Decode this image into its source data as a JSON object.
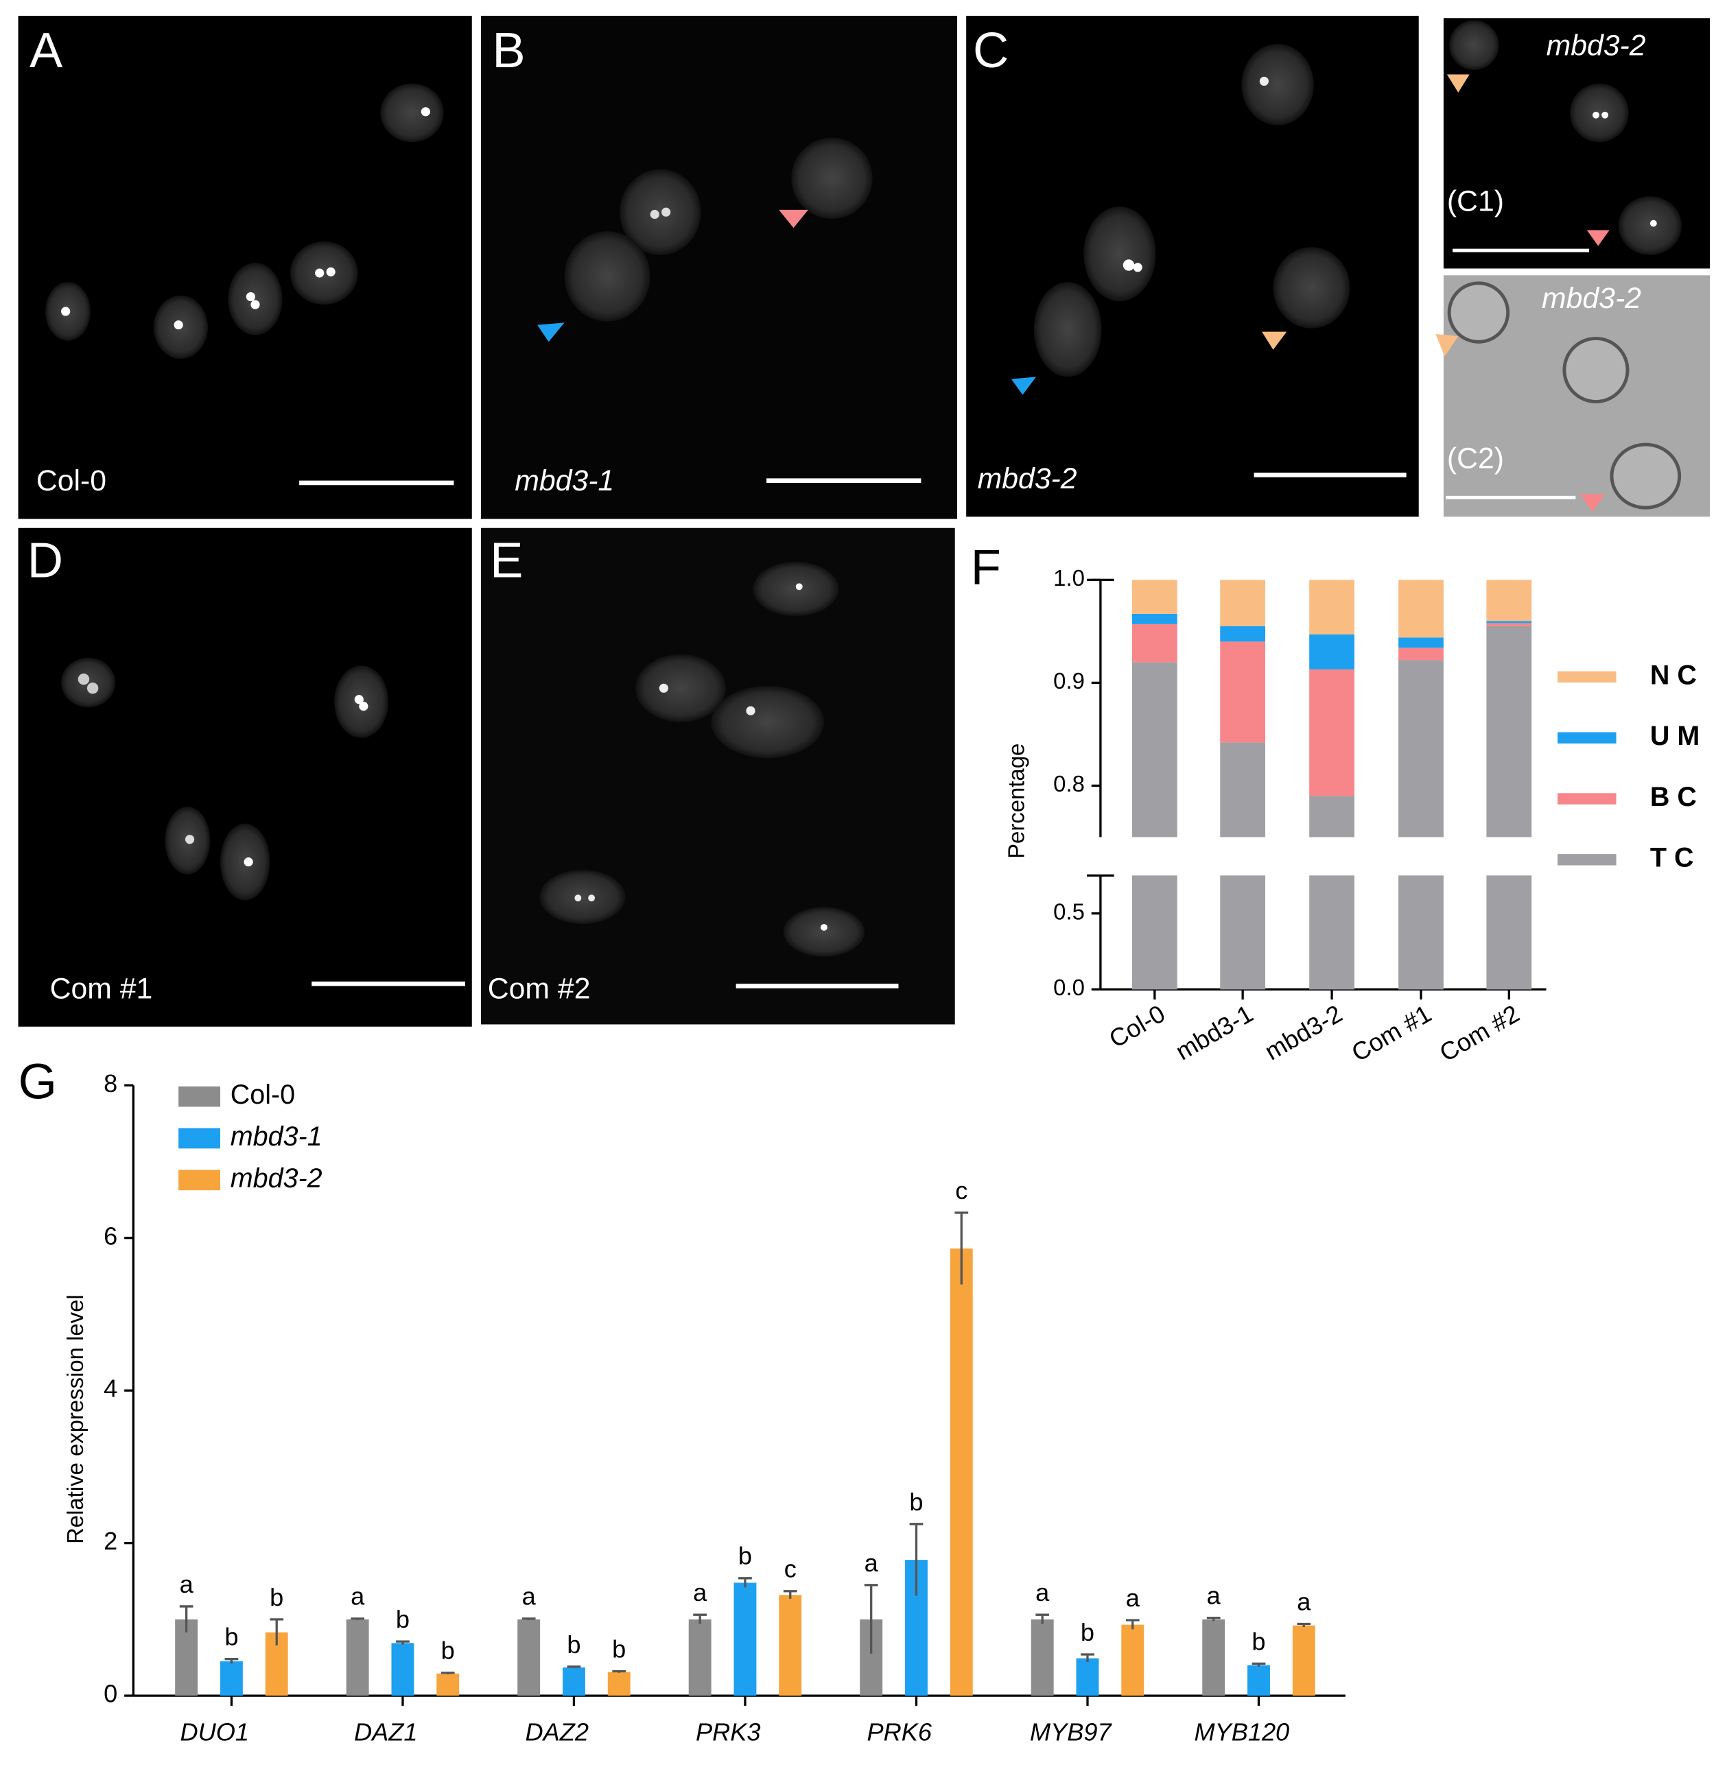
{
  "panels": [
    {
      "label": "A",
      "caption": "Col-0"
    },
    {
      "label": "B",
      "caption": "mbd3-1"
    },
    {
      "label": "C",
      "caption": "mbd3-2"
    },
    {
      "label": "(C1)",
      "caption": "mbd3-2"
    },
    {
      "label": "(C2)",
      "caption": "mbd3-2"
    },
    {
      "label": "D",
      "caption": "Com #1"
    },
    {
      "label": "E",
      "caption": "Com #2"
    }
  ],
  "chart_data": [
    {
      "type": "bar",
      "stacked": true,
      "label": "F",
      "ylabel": "Percentage",
      "categories": [
        "Col-0",
        "mbd3-1",
        "mbd3-2",
        "Com #1",
        "Com #2"
      ],
      "series": [
        {
          "name": "T C",
          "color": "#a0a0a4",
          "values": [
            0.92,
            0.842,
            0.79,
            0.922,
            0.955
          ]
        },
        {
          "name": "B C",
          "color": "#f7868a",
          "values": [
            0.037,
            0.098,
            0.123,
            0.012,
            0.003
          ]
        },
        {
          "name": "U M",
          "color": "#1ea0f0",
          "values": [
            0.01,
            0.015,
            0.034,
            0.01,
            0.002
          ]
        },
        {
          "name": "N C",
          "color": "#f9bd84",
          "values": [
            0.033,
            0.045,
            0.053,
            0.056,
            0.04
          ]
        }
      ],
      "axis_segments": [
        {
          "ylim": [
            0,
            0.75
          ],
          "yticks": [
            {
              "value": 0,
              "label": "0.0"
            },
            0.5
          ]
        },
        {
          "ylim": [
            0.75,
            1
          ],
          "yticks": [
            0.8,
            0.9,
            {
              "value": 1,
              "label": "1.0"
            }
          ]
        }
      ]
    },
    {
      "type": "bar",
      "stacked": false,
      "label": "G",
      "ylabel": "Relative expression level",
      "categories": [
        "DUO1",
        "DAZ1",
        "DAZ2",
        "PRK3",
        "PRK6",
        "MYB97",
        "MYB120"
      ],
      "ylim": [
        0,
        8
      ],
      "yticks": [
        0,
        2,
        4,
        6,
        8
      ],
      "series": [
        {
          "name": "Col-0",
          "color": "#8c8c8c",
          "values": [
            1.0,
            1.0,
            1.0,
            1.0,
            1.0,
            1.0,
            1.0
          ],
          "errors": [
            0.17,
            0.01,
            0.01,
            0.06,
            0.45,
            0.06,
            0.02
          ],
          "labels": [
            "a",
            "a",
            "a",
            "a",
            "a",
            "a",
            "a"
          ]
        },
        {
          "name": "mbd3-1",
          "color": "#1ea0f0",
          "values": [
            0.45,
            0.69,
            0.37,
            1.48,
            1.78,
            0.49,
            0.4
          ],
          "errors": [
            0.03,
            0.02,
            0.01,
            0.06,
            0.47,
            0.05,
            0.02
          ],
          "labels": [
            "b",
            "b",
            "b",
            "b",
            "b",
            "b",
            "b"
          ]
        },
        {
          "name": "mbd3-2",
          "color": "#f7a43c",
          "values": [
            0.83,
            0.29,
            0.31,
            1.32,
            5.86,
            0.93,
            0.92
          ],
          "errors": [
            0.17,
            0.01,
            0.01,
            0.05,
            0.47,
            0.06,
            0.02
          ],
          "labels": [
            "b",
            "b",
            "b",
            "c",
            "c",
            "a",
            "a"
          ]
        }
      ]
    }
  ]
}
